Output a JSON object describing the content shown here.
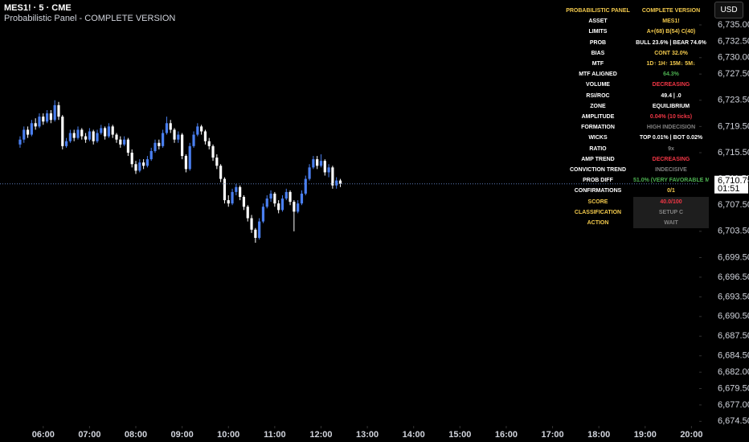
{
  "header": {
    "symbol": "MES1! · 5 · CME",
    "indicator": "Probabilistic Panel - COMPLETE VERSION",
    "currency": "USD"
  },
  "panel": {
    "rows": [
      {
        "label": "PROBABILISTIC PANEL",
        "value": "COMPLETE VERSION",
        "label_color": "#f2c94c",
        "value_color": "#f2c94c"
      },
      {
        "label": "ASSET",
        "value": "MES1!",
        "label_color": "#ffffff",
        "value_color": "#f2c94c"
      },
      {
        "label": "LIMITS",
        "value": "A+(68) B(54) C(40)",
        "label_color": "#ffffff",
        "value_color": "#f2c94c"
      },
      {
        "label": "PROB",
        "value": "BULL 23.6% | BEAR 74.6%",
        "label_color": "#ffffff",
        "value_color": "#ffffff"
      },
      {
        "label": "BIAS",
        "value": "CONT 32.0%",
        "label_color": "#ffffff",
        "value_color": "#f2c94c"
      },
      {
        "label": "MTF",
        "value": "1D↑ 1H↑ 15M↓ 5M↓",
        "label_color": "#ffffff",
        "value_color": "#f2c94c"
      },
      {
        "label": "MTF ALIGNED",
        "value": "64.3%",
        "label_color": "#ffffff",
        "value_color": "#4caf50"
      },
      {
        "label": "VOLUME",
        "value": "DECREASING",
        "label_color": "#ffffff",
        "value_color": "#f23645"
      },
      {
        "label": "RSI/ROC",
        "value": "49.4 | .0",
        "label_color": "#ffffff",
        "value_color": "#ffffff"
      },
      {
        "label": "ZONE",
        "value": "EQUILIBRIUM",
        "label_color": "#ffffff",
        "value_color": "#ffffff"
      },
      {
        "label": "AMPLITUDE",
        "value": "0.04% (10 ticks)",
        "label_color": "#ffffff",
        "value_color": "#f23645"
      },
      {
        "label": "FORMATION",
        "value": "HIGH INDECISION",
        "label_color": "#ffffff",
        "value_color": "#808080"
      },
      {
        "label": "WICKS",
        "value": "TOP 0.01% | BOT 0.02%",
        "label_color": "#ffffff",
        "value_color": "#ffffff"
      },
      {
        "label": "RATIO",
        "value": "9x",
        "label_color": "#ffffff",
        "value_color": "#808080"
      },
      {
        "label": "AMP TREND",
        "value": "DECREASING",
        "label_color": "#ffffff",
        "value_color": "#f23645"
      },
      {
        "label": "CONVICTION TREND",
        "value": "INDECISIVE",
        "label_color": "#ffffff",
        "value_color": "#808080"
      },
      {
        "label": "PROB DIFF",
        "value": "51.0% (VERY FAVORABLE MOMENT )",
        "label_color": "#ffffff",
        "value_color": "#4caf50"
      },
      {
        "label": "CONFIRMATIONS",
        "value": "0/1",
        "label_color": "#ffffff",
        "value_color": "#f2c94c"
      },
      {
        "label": "SCORE",
        "value": "40.0/100",
        "label_color": "#f2c94c",
        "value_color": "#f23645",
        "value_bg": "#1e1e1e"
      },
      {
        "label": "CLASSIFICATION",
        "value": "SETUP C",
        "label_color": "#f2c94c",
        "value_color": "#808080",
        "value_bg": "#1e1e1e"
      },
      {
        "label": "ACTION",
        "value": "WAIT",
        "label_color": "#f2c94c",
        "value_color": "#808080",
        "value_bg": "#1e1e1e"
      }
    ]
  },
  "chart_data": {
    "type": "candlestick",
    "up_color": "#4a7ff0",
    "down_color": "#ffffff",
    "x": [
      330,
      335,
      340,
      345,
      350,
      355,
      360,
      365,
      370,
      375,
      380,
      385,
      390,
      395,
      400,
      405,
      410,
      415,
      420,
      425,
      430,
      435,
      440,
      445,
      450,
      455,
      460,
      465,
      470,
      475,
      480,
      485,
      490,
      495,
      500,
      505,
      510,
      515,
      520,
      525,
      530,
      535,
      540,
      545,
      550,
      555,
      560,
      565,
      570,
      575,
      580,
      585,
      590,
      595,
      600,
      605,
      610,
      615,
      620,
      625,
      630,
      635,
      640,
      645,
      650,
      655,
      660,
      665,
      670,
      675,
      680,
      685,
      690,
      695,
      700,
      705,
      710,
      715,
      720,
      725,
      730,
      735,
      740,
      745
    ],
    "open": [
      6716.75,
      6717.5,
      6719,
      6718.25,
      6720,
      6719.5,
      6721,
      6720.25,
      6721.5,
      6720.5,
      6722.75,
      6721,
      6716.5,
      6717.25,
      6718.5,
      6717.75,
      6719,
      6718,
      6717.5,
      6718.75,
      6717.25,
      6718.5,
      6719.25,
      6718,
      6719.5,
      6718.25,
      6717.5,
      6716.75,
      6717.5,
      6715.5,
      6713.75,
      6712.75,
      6714,
      6713.5,
      6714.5,
      6715.75,
      6717,
      6716.5,
      6718.5,
      6720,
      6719,
      6717.5,
      6718.25,
      6715,
      6713,
      6716.5,
      6718.25,
      6719.5,
      6718.75,
      6717.25,
      6716.5,
      6714.75,
      6713.5,
      6711.5,
      6708.25,
      6707.75,
      6709.5,
      6710.25,
      6708.75,
      6707.25,
      6705.5,
      6703.75,
      6702.5,
      6705,
      6707.25,
      6708.5,
      6709.25,
      6707.75,
      6706.75,
      6708.5,
      6709.5,
      6708,
      6706.5,
      6707.75,
      6709.25,
      6711.5,
      6713.25,
      6714.5,
      6713.5,
      6714.25,
      6712.5,
      6713.25,
      6710.5,
      6711.25
    ],
    "high": [
      6718,
      6719.5,
      6719.5,
      6720.5,
      6720.75,
      6721.5,
      6721.5,
      6722,
      6722,
      6723.5,
      6723.25,
      6721.25,
      6717.75,
      6719,
      6719,
      6719.5,
      6719.25,
      6718.5,
      6719.25,
      6719,
      6719,
      6719.75,
      6719.5,
      6720,
      6719.75,
      6718.5,
      6718,
      6718,
      6717.75,
      6716,
      6714.25,
      6714.5,
      6714.5,
      6715,
      6716.25,
      6717.5,
      6717.5,
      6719,
      6721,
      6720.5,
      6719.25,
      6718.75,
      6718.5,
      6715.25,
      6717,
      6718.75,
      6720,
      6719.75,
      6719,
      6717.75,
      6716.75,
      6715.25,
      6713.75,
      6711.75,
      6709,
      6710,
      6710.75,
      6710.5,
      6709,
      6707.5,
      6706,
      6704,
      6705.5,
      6707.75,
      6709,
      6709.75,
      6709.5,
      6708.25,
      6709,
      6710,
      6709.75,
      6708.25,
      6708.25,
      6709.75,
      6712,
      6713.75,
      6715,
      6715,
      6715.25,
      6714.5,
      6713.75,
      6713.5,
      6711.75,
      6711.5
    ],
    "low": [
      6716.25,
      6717,
      6717.75,
      6718,
      6719,
      6719.25,
      6719.75,
      6720,
      6720,
      6720.25,
      6720.5,
      6716,
      6716.25,
      6717,
      6717.25,
      6717.5,
      6717.5,
      6717,
      6717.25,
      6716.75,
      6717,
      6718.25,
      6717.5,
      6717.75,
      6717.75,
      6717,
      6716.25,
      6716.5,
      6715,
      6713.25,
      6712.25,
      6712.5,
      6713,
      6713.25,
      6714.25,
      6715.5,
      6716,
      6716.25,
      6718.25,
      6718.5,
      6717,
      6717,
      6714.5,
      6712.5,
      6712.75,
      6716.25,
      6718,
      6718.25,
      6716.75,
      6716,
      6714.25,
      6713,
      6711,
      6707.75,
      6707.25,
      6707.5,
      6709,
      6708.25,
      6706.75,
      6705,
      6703.25,
      6701.75,
      6702.25,
      6704.75,
      6707,
      6708,
      6707.25,
      6706.25,
      6706.5,
      6708.25,
      6707.5,
      6703.5,
      6706.25,
      6707.5,
      6709,
      6711.25,
      6713,
      6713,
      6713.25,
      6712,
      6711.75,
      6710,
      6710,
      6710.25
    ],
    "close": [
      6717.5,
      6719,
      6718.25,
      6720,
      6719.5,
      6721,
      6720.25,
      6721.5,
      6720.5,
      6722.75,
      6721,
      6716.5,
      6717.25,
      6718.5,
      6717.75,
      6719,
      6718,
      6717.5,
      6718.75,
      6717.25,
      6718.5,
      6719.25,
      6718,
      6719.5,
      6718.25,
      6717.5,
      6716.75,
      6717.5,
      6715.5,
      6713.75,
      6712.75,
      6714,
      6713.5,
      6714.5,
      6715.75,
      6717,
      6716.5,
      6718.5,
      6720,
      6719,
      6717.5,
      6718.25,
      6715,
      6713,
      6716.5,
      6718.25,
      6719.5,
      6718.75,
      6717.25,
      6716.5,
      6714.75,
      6713.5,
      6711.5,
      6708.25,
      6707.75,
      6709.5,
      6710.25,
      6708.75,
      6707.25,
      6705.5,
      6703.75,
      6702.5,
      6705,
      6707.25,
      6708.5,
      6709.25,
      6707.75,
      6706.75,
      6708.5,
      6709.5,
      6708,
      6706.5,
      6707.75,
      6709.25,
      6711.5,
      6713.25,
      6714.5,
      6713.5,
      6714.25,
      6712.5,
      6713.25,
      6710.5,
      6711.25,
      6710.75
    ],
    "xlim": [
      304,
      1210
    ],
    "xticks": [
      {
        "value": 360,
        "label": "06:00"
      },
      {
        "value": 420,
        "label": "07:00"
      },
      {
        "value": 480,
        "label": "08:00"
      },
      {
        "value": 540,
        "label": "09:00"
      },
      {
        "value": 600,
        "label": "10:00"
      },
      {
        "value": 660,
        "label": "11:00"
      },
      {
        "value": 720,
        "label": "12:00"
      },
      {
        "value": 780,
        "label": "13:00"
      },
      {
        "value": 840,
        "label": "14:00"
      },
      {
        "value": 900,
        "label": "15:00"
      },
      {
        "value": 960,
        "label": "16:00"
      },
      {
        "value": 1020,
        "label": "17:00"
      },
      {
        "value": 1080,
        "label": "18:00"
      },
      {
        "value": 1140,
        "label": "19:00"
      },
      {
        "value": 1200,
        "label": "20:00"
      }
    ],
    "ylim": [
      6673.8,
      6738.8
    ],
    "yticks": [
      {
        "value": 6735,
        "label": "6,735.00"
      },
      {
        "value": 6732.5,
        "label": "6,732.50"
      },
      {
        "value": 6730,
        "label": "6,730.00"
      },
      {
        "value": 6727.5,
        "label": "6,727.50"
      },
      {
        "value": 6723.5,
        "label": "6,723.50"
      },
      {
        "value": 6719.5,
        "label": "6,719.50"
      },
      {
        "value": 6715.5,
        "label": "6,715.50"
      },
      {
        "value": 6711.5,
        "label": "6,711.50"
      },
      {
        "value": 6707.5,
        "label": "6,707.50"
      },
      {
        "value": 6703.5,
        "label": "6,703.50"
      },
      {
        "value": 6699.5,
        "label": "6,699.50"
      },
      {
        "value": 6696.5,
        "label": "6,696.50"
      },
      {
        "value": 6693.5,
        "label": "6,693.50"
      },
      {
        "value": 6690.5,
        "label": "6,690.50"
      },
      {
        "value": 6687.5,
        "label": "6,687.50"
      },
      {
        "value": 6684.5,
        "label": "6,684.50"
      },
      {
        "value": 6682,
        "label": "6,682.00"
      },
      {
        "value": 6679.5,
        "label": "6,679.50"
      },
      {
        "value": 6677,
        "label": "6,677.00"
      },
      {
        "value": 6674.5,
        "label": "6,674.50"
      }
    ],
    "last_price": {
      "value": 6710.75,
      "label": "6,710.75"
    },
    "countdown": "01:51"
  }
}
